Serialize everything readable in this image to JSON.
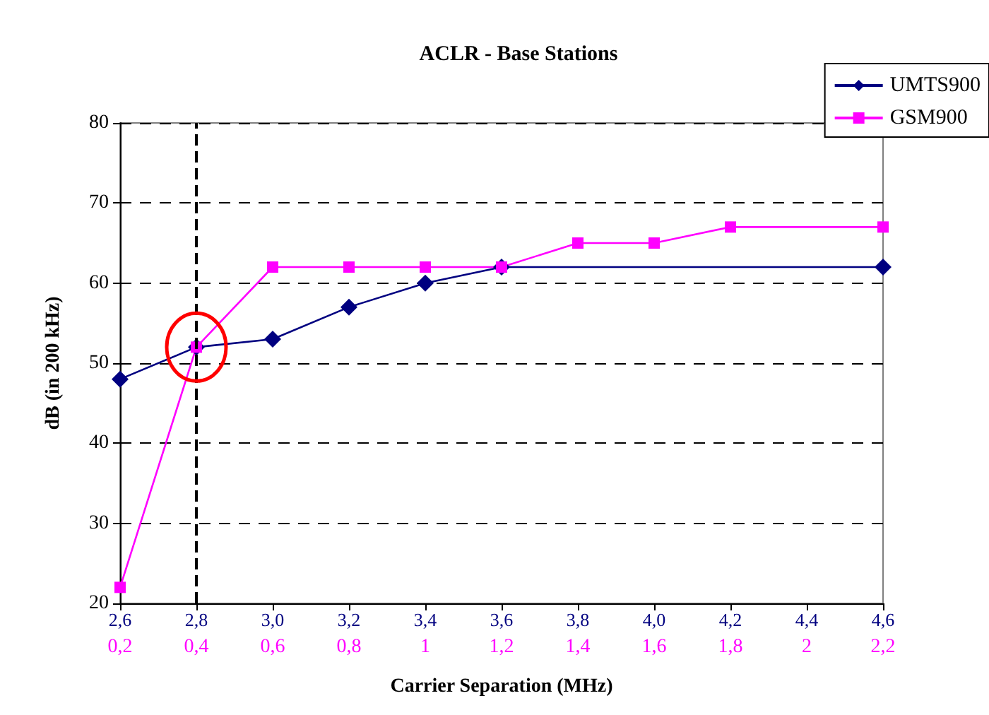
{
  "chart_data": {
    "type": "line",
    "title": "ACLR - Base Stations",
    "xlabel": "Carrier Separation (MHz)",
    "ylabel": "dB (in 200 kHz)",
    "series": [
      {
        "name": "UMTS900",
        "color": "#000080",
        "marker": "diamond",
        "x": [
          0.2,
          0.4,
          0.6,
          0.8,
          1,
          1.2,
          2.2
        ],
        "values": [
          48,
          52,
          53,
          57,
          60,
          62,
          62
        ]
      },
      {
        "name": "GSM900",
        "color": "#ff00ff",
        "marker": "square",
        "x": [
          0.2,
          0.4,
          0.6,
          0.8,
          1,
          1.2,
          1.4,
          1.6,
          1.8,
          2.2
        ],
        "values": [
          22,
          52,
          62,
          62,
          62,
          62,
          65,
          65,
          67,
          67
        ]
      }
    ],
    "xlim": [
      0.2,
      2.2
    ],
    "xticks": [
      {
        "value": 0.2,
        "label": "0,2"
      },
      {
        "value": 0.4,
        "label": "0,4"
      },
      {
        "value": 0.6,
        "label": "0,6"
      },
      {
        "value": 0.8,
        "label": "0,8"
      },
      1,
      {
        "value": 1.2,
        "label": "1,2"
      },
      {
        "value": 1.4,
        "label": "1,4"
      },
      {
        "value": 1.6,
        "label": "1,6"
      },
      {
        "value": 1.8,
        "label": "1,8"
      },
      2,
      {
        "value": 2.2,
        "label": "2,2"
      }
    ],
    "x2lim": [
      2.6,
      4.6
    ],
    "x2ticks": [
      {
        "value": 2.6,
        "label": "2,6"
      },
      {
        "value": 2.8,
        "label": "2,8"
      },
      {
        "value": 3.0,
        "label": "3,0"
      },
      {
        "value": 3.2,
        "label": "3,2"
      },
      {
        "value": 3.4,
        "label": "3,4"
      },
      {
        "value": 3.6,
        "label": "3,6"
      },
      {
        "value": 3.8,
        "label": "3,8"
      },
      {
        "value": 4.0,
        "label": "4,0"
      },
      {
        "value": 4.2,
        "label": "4,2"
      },
      {
        "value": 4.4,
        "label": "4,4"
      },
      {
        "value": 4.6,
        "label": "4,6"
      }
    ],
    "ylim": [
      20,
      80
    ],
    "yticks": [
      20,
      30,
      40,
      50,
      60,
      70,
      80
    ],
    "ref_lines": [
      {
        "axis": "x",
        "value": 0.4,
        "color": "#000000",
        "line_style": "dashed"
      }
    ],
    "grid": "y",
    "legend": "top right",
    "line_style": "solid"
  }
}
